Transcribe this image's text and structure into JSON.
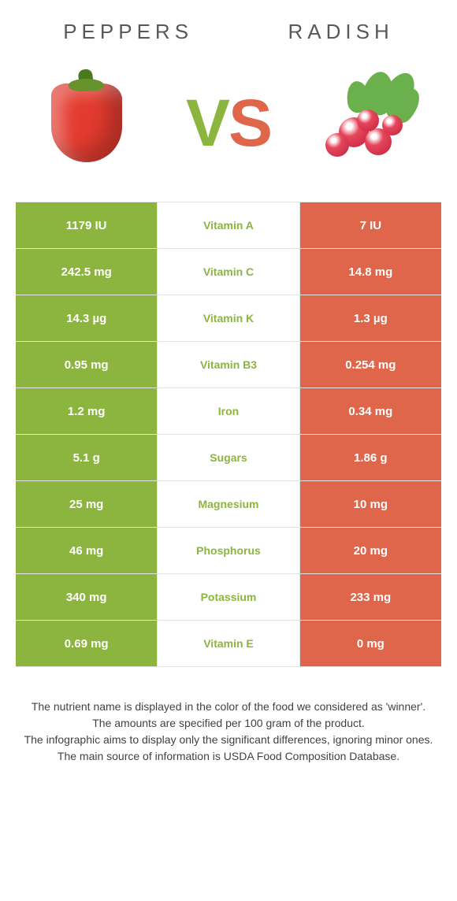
{
  "colors": {
    "left": "#8cb53f",
    "right": "#e0664b",
    "text": "#59595b",
    "footer_text": "#424143",
    "border": "#e3e3e3"
  },
  "header": {
    "left_title": "Peppers",
    "right_title": "Radish",
    "vs_v": "V",
    "vs_s": "S"
  },
  "rows": [
    {
      "left": "1179 IU",
      "label": "Vitamin A",
      "right": "7 IU",
      "winner": "left"
    },
    {
      "left": "242.5 mg",
      "label": "Vitamin C",
      "right": "14.8 mg",
      "winner": "left"
    },
    {
      "left": "14.3 µg",
      "label": "Vitamin K",
      "right": "1.3 µg",
      "winner": "left"
    },
    {
      "left": "0.95 mg",
      "label": "Vitamin B3",
      "right": "0.254 mg",
      "winner": "left"
    },
    {
      "left": "1.2 mg",
      "label": "Iron",
      "right": "0.34 mg",
      "winner": "left"
    },
    {
      "left": "5.1 g",
      "label": "Sugars",
      "right": "1.86 g",
      "winner": "left"
    },
    {
      "left": "25 mg",
      "label": "Magnesium",
      "right": "10 mg",
      "winner": "left"
    },
    {
      "left": "46 mg",
      "label": "Phosphorus",
      "right": "20 mg",
      "winner": "left"
    },
    {
      "left": "340 mg",
      "label": "Potassium",
      "right": "233 mg",
      "winner": "left"
    },
    {
      "left": "0.69 mg",
      "label": "Vitamin E",
      "right": "0 mg",
      "winner": "left"
    }
  ],
  "footer": {
    "line1": "The nutrient name is displayed in the color of the food we considered as 'winner'.",
    "line2": "The amounts are specified per 100 gram of the product.",
    "line3": "The infographic aims to display only the significant differences, ignoring minor ones.",
    "line4": "The main source of information is USDA Food Composition Database."
  }
}
